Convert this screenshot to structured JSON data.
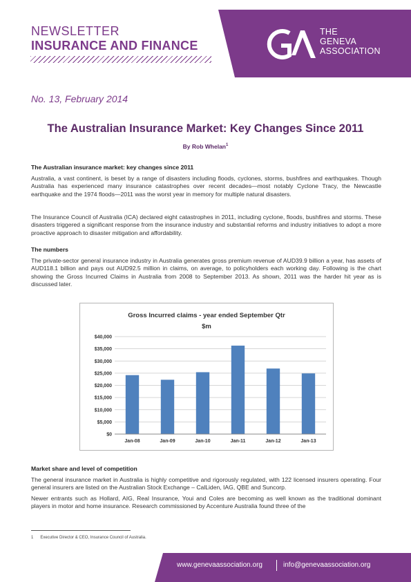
{
  "header": {
    "line1": "NEWSLETTER",
    "line2": "INSURANCE AND FINANCE",
    "logo_line1": "THE",
    "logo_line2": "GENEVA",
    "logo_line3": "ASSOCIATION",
    "accent_color": "#7c3a8a"
  },
  "issue": "No. 13, February 2014",
  "article": {
    "title": "The Australian Insurance Market: Key Changes Since 2011",
    "byline": "By Rob Whelan",
    "byline_ref": "1",
    "sections": [
      {
        "heading": "The Australian insurance market: key changes since 2011",
        "paragraphs": [
          "Australia, a vast continent, is beset by a range of disasters including floods, cyclones, storms, bushfires and earthquakes. Though Australia has experienced many insurance catastrophes over recent decades—most notably Cyclone Tracy, the Newcastle earthquake and the 1974 floods—2011 was the worst year in memory for multiple natural disasters.",
          "The Insurance Council of Australia (ICA) declared eight catastrophes in 2011, including cyclone, floods, bushfires and storms. These disasters triggered a significant response from the insurance industry and substantial reforms and industry initiatives to adopt a more proactive approach to disaster mitigation and affordability."
        ]
      },
      {
        "heading": "The numbers",
        "paragraphs": [
          "The private-sector general insurance industry in Australia generates gross premium revenue of AUD39.9 billion a year, has assets of AUD118.1 billion and pays out AUD92.5 million in claims, on average, to policyholders each working day. Following is the chart showing the Gross Incurred Claims in Australia from 2008 to September 2013. As shown, 2011 was the harder hit year as is discussed later."
        ]
      },
      {
        "heading": "Market share and level of competition",
        "paragraphs": [
          "The general insurance market in Australia is highly competitive and rigorously regulated, with 122 licensed insurers operating. Four general insurers are listed on the Australian Stock Exchange – CalLiden, IAG, QBE and Suncorp.",
          "Newer entrants such as Hollard, AIG, Real Insurance, Youi and Coles are becoming as well known as the traditional dominant players in motor and home insurance. Research commissioned by Accenture Australia found three of the"
        ]
      }
    ]
  },
  "chart_data": {
    "type": "bar",
    "title": "Gross Incurred claims - year ended September Qtr",
    "subtitle": "$m",
    "categories": [
      "Jan-08",
      "Jan-09",
      "Jan-10",
      "Jan-11",
      "Jan-12",
      "Jan-13"
    ],
    "values": [
      24200,
      22300,
      25400,
      36300,
      26900,
      24900
    ],
    "ylim": [
      0,
      40000
    ],
    "yticks": [
      0,
      5000,
      10000,
      15000,
      20000,
      25000,
      30000,
      35000,
      40000
    ],
    "ytick_labels": [
      "$0",
      "$5,000",
      "$10,000",
      "$15,000",
      "$20,000",
      "$25,000",
      "$30,000",
      "$35,000",
      "$40,000"
    ],
    "grid": true,
    "legend": "none",
    "bar_color": "#4f81bd"
  },
  "footnote": {
    "number": "1",
    "text": "Executive Director & CEO, Insurance Council of Australia."
  },
  "footer": {
    "website": "www.genevaassociation.org",
    "email": "info@genevaassociation.org"
  }
}
